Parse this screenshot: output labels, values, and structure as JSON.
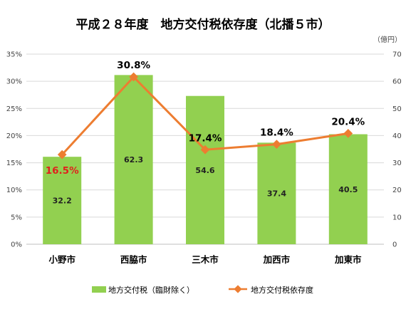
{
  "chart_data": {
    "type": "bar",
    "title": "平成２８年度　地方交付税依存度（北播５市）",
    "right_axis_unit": "（億円）",
    "categories": [
      "小野市",
      "西脇市",
      "三木市",
      "加西市",
      "加東市"
    ],
    "series": [
      {
        "name": "地方交付税（臨財除く）",
        "type": "bar",
        "axis": "right",
        "color": "#92d050",
        "values": [
          32.2,
          62.3,
          54.6,
          37.4,
          40.5
        ],
        "labels": [
          "32.2",
          "62.3",
          "54.6",
          "37.4",
          "40.5"
        ]
      },
      {
        "name": "地方交付税依存度",
        "type": "line",
        "axis": "left",
        "color": "#ed7d31",
        "values": [
          16.5,
          30.8,
          17.4,
          18.4,
          20.4
        ],
        "labels": [
          "16.5%",
          "30.8%",
          "17.4%",
          "18.4%",
          "20.4%"
        ],
        "highlight_color": "#e0211d",
        "highlight_index": 0
      }
    ],
    "left_axis": {
      "min": 0,
      "max": 35,
      "step": 5,
      "labels": [
        "0%",
        "5%",
        "10%",
        "15%",
        "20%",
        "25%",
        "30%",
        "35%"
      ]
    },
    "right_axis": {
      "min": 0,
      "max": 70,
      "step": 10,
      "labels": [
        "0",
        "10",
        "20",
        "30",
        "40",
        "50",
        "60",
        "70"
      ]
    },
    "grid": true,
    "legend_position": "bottom"
  }
}
